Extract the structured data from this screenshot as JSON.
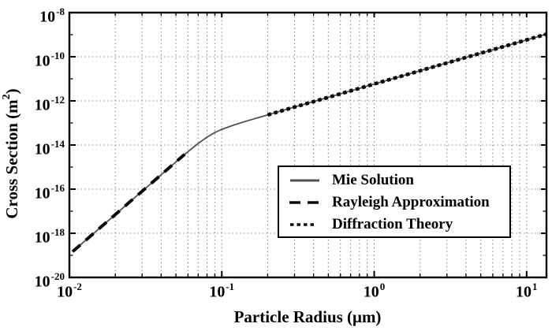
{
  "figure": {
    "background": "#ffffff",
    "xlabel": "Particle Radius (μm)",
    "ylabel_prefix": "Cross Section (m",
    "ylabel_sup": "2",
    "ylabel_suffix": ")"
  },
  "chart_data": {
    "type": "line",
    "title": "",
    "xlabel": "Particle Radius (μm)",
    "ylabel": "Cross Section (m^2)",
    "x_scale": "log",
    "y_scale": "log",
    "xlim": [
      0.01,
      13.5
    ],
    "ylim": [
      1e-20,
      1e-08
    ],
    "x_tick_exponents": [
      -2,
      -1,
      0,
      1
    ],
    "y_tick_exponents": [
      -8,
      -10,
      -12,
      -14,
      -16,
      -18,
      -20
    ],
    "grid": {
      "show": true,
      "style": "dotted",
      "color": "#8f8f8f"
    },
    "axis_box_color": "#000000",
    "legend": {
      "position": "inside-lower-right",
      "border_color": "#000000",
      "background": "#ffffff"
    },
    "series": [
      {
        "name": "Mie Solution",
        "line_style": "solid",
        "color": "#515151",
        "width": 1.8,
        "points": [
          [
            0.0105,
            1.47e-19
          ],
          [
            0.013,
            5.3e-19
          ],
          [
            0.016,
            1.85e-18
          ],
          [
            0.02,
            7e-18
          ],
          [
            0.025,
            2.7e-17
          ],
          [
            0.032,
            1.18e-16
          ],
          [
            0.04,
            4.5e-16
          ],
          [
            0.05,
            1.71e-15
          ],
          [
            0.06,
            5e-15
          ],
          [
            0.07,
            1.18e-14
          ],
          [
            0.08,
            2.28e-14
          ],
          [
            0.09,
            3.66e-14
          ],
          [
            0.1,
            5.13e-14
          ],
          [
            0.12,
            8.1e-14
          ],
          [
            0.15,
            1.3e-13
          ],
          [
            0.2,
            2.32e-13
          ],
          [
            0.25,
            3.63e-13
          ],
          [
            0.32,
            5.94e-13
          ],
          [
            0.4,
            9.28e-13
          ],
          [
            0.5,
            1.45e-12
          ],
          [
            0.65,
            2.45e-12
          ],
          [
            0.8,
            3.71e-12
          ],
          [
            1.0,
            5.8e-12
          ],
          [
            1.3,
            9.8e-12
          ],
          [
            1.6,
            1.48e-11
          ],
          [
            2.0,
            2.32e-11
          ],
          [
            2.5,
            3.63e-11
          ],
          [
            3.2,
            5.94e-11
          ],
          [
            4.0,
            9.28e-11
          ],
          [
            5.0,
            1.45e-10
          ],
          [
            6.5,
            2.45e-10
          ],
          [
            8.0,
            3.71e-10
          ],
          [
            10.0,
            5.8e-10
          ],
          [
            13.4,
            1.04e-09
          ]
        ]
      },
      {
        "name": "Rayleigh Approximation",
        "line_style": "dashed",
        "color": "#0a0a0a",
        "width": 4,
        "points": [
          [
            0.0105,
            1.47e-19
          ],
          [
            0.013,
            5.3e-19
          ],
          [
            0.016,
            1.85e-18
          ],
          [
            0.02,
            7e-18
          ],
          [
            0.025,
            2.7e-17
          ],
          [
            0.032,
            1.18e-16
          ],
          [
            0.04,
            4.5e-16
          ],
          [
            0.05,
            1.72e-15
          ],
          [
            0.057,
            3.77e-15
          ]
        ]
      },
      {
        "name": "Diffraction Theory",
        "line_style": "dotted",
        "color": "#0a0a0a",
        "width": 4.6,
        "points": [
          [
            0.2,
            2.32e-13
          ],
          [
            0.25,
            3.63e-13
          ],
          [
            0.32,
            5.94e-13
          ],
          [
            0.4,
            9.28e-13
          ],
          [
            0.5,
            1.45e-12
          ],
          [
            0.65,
            2.45e-12
          ],
          [
            0.8,
            3.71e-12
          ],
          [
            1.0,
            5.8e-12
          ],
          [
            1.3,
            9.8e-12
          ],
          [
            1.6,
            1.48e-11
          ],
          [
            2.0,
            2.32e-11
          ],
          [
            2.5,
            3.63e-11
          ],
          [
            3.2,
            5.94e-11
          ],
          [
            4.0,
            9.28e-11
          ],
          [
            5.0,
            1.45e-10
          ],
          [
            6.5,
            2.45e-10
          ],
          [
            8.0,
            3.71e-10
          ],
          [
            10.0,
            5.8e-10
          ],
          [
            13.4,
            1.04e-09
          ]
        ]
      }
    ]
  }
}
